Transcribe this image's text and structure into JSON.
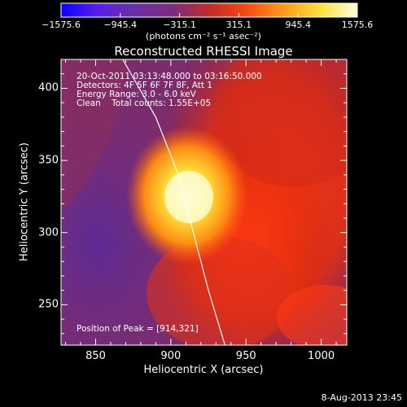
{
  "colorbar": {
    "ticks": [
      "-1575.6",
      "-945.4",
      "-315.1",
      "315.1",
      "945.4",
      "1575.6"
    ],
    "units": "(photons cm⁻² s⁻¹ asec⁻²)",
    "stops": [
      "#0b00ff",
      "#5a1fe6",
      "#6b2fa8",
      "#7a2d7f",
      "#c22a2a",
      "#f24b12",
      "#ff9a1a",
      "#ffe040",
      "#ffffd8"
    ]
  },
  "plot": {
    "title": "Reconstructed RHESSI Image",
    "xlabel": "Heliocentric X (arcsec)",
    "ylabel": "Heliocentric Y (arcsec)",
    "annotations": [
      "20-Oct-2011 03:13:48.000 to 03:16:50.000",
      "Detectors: 4F 5F 6F 7F 8F, Att 1",
      "Energy Range: 3.0 - 6.0 keV",
      "Clean    Total counts: 1.55E+05"
    ],
    "peak_label": "Position of Peak = [914,321]"
  },
  "footer": {
    "timestamp": "8-Aug-2013 23:45"
  },
  "chart_data": {
    "type": "heatmap",
    "title": "Reconstructed RHESSI Image",
    "xlabel": "Heliocentric X (arcsec)",
    "ylabel": "Heliocentric Y (arcsec)",
    "xlim": [
      827,
      1017
    ],
    "ylim": [
      222,
      420
    ],
    "xticks": [
      850,
      900,
      950,
      1000
    ],
    "yticks": [
      250,
      300,
      350,
      400
    ],
    "colorbar_range": [
      -1575.6,
      1575.6
    ],
    "peak": {
      "x": 914,
      "y": 321
    },
    "limb_curve": [
      [
        868,
        420
      ],
      [
        890,
        380
      ],
      [
        905,
        340
      ],
      [
        915,
        300
      ],
      [
        925,
        260
      ],
      [
        936,
        222
      ]
    ]
  }
}
